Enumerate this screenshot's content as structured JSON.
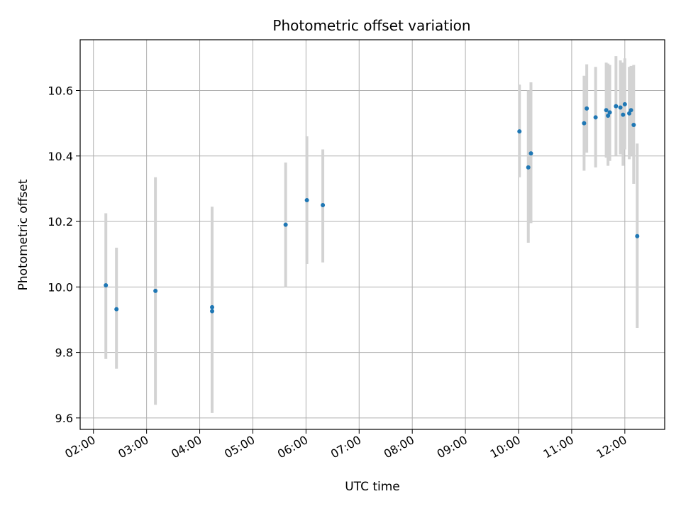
{
  "chart_data": {
    "type": "scatter",
    "title": "Photometric offset variation",
    "xlabel": "UTC time",
    "ylabel": "Photometric offset",
    "x_ticks": [
      "02:00",
      "03:00",
      "04:00",
      "05:00",
      "06:00",
      "07:00",
      "08:00",
      "09:00",
      "10:00",
      "11:00",
      "12:00"
    ],
    "y_ticks": [
      "9.6",
      "9.8",
      "10.0",
      "10.2",
      "10.4",
      "10.6"
    ],
    "xlim": [
      "01:45",
      "12:45"
    ],
    "ylim": [
      9.565,
      10.755
    ],
    "grid": true,
    "colors": {
      "points": "#1f77b4",
      "error_bars": "#d3d3d3",
      "grid": "#b0b0b0"
    },
    "points": [
      {
        "t": "02:14",
        "y": 10.005,
        "lo": 9.78,
        "hi": 10.225
      },
      {
        "t": "02:26",
        "y": 9.932,
        "lo": 9.75,
        "hi": 10.12
      },
      {
        "t": "03:10",
        "y": 9.988,
        "lo": 9.64,
        "hi": 10.335
      },
      {
        "t": "04:14",
        "y": 9.938,
        "lo": 9.63,
        "hi": 10.245
      },
      {
        "t": "04:14",
        "y": 9.926,
        "lo": 9.615,
        "hi": 10.24
      },
      {
        "t": "05:37",
        "y": 10.19,
        "lo": 10.0,
        "hi": 10.38
      },
      {
        "t": "06:01",
        "y": 10.265,
        "lo": 10.07,
        "hi": 10.46
      },
      {
        "t": "06:19",
        "y": 10.25,
        "lo": 10.075,
        "hi": 10.42
      },
      {
        "t": "10:01",
        "y": 10.475,
        "lo": 10.335,
        "hi": 10.618
      },
      {
        "t": "10:11",
        "y": 10.365,
        "lo": 10.135,
        "hi": 10.6
      },
      {
        "t": "10:14",
        "y": 10.408,
        "lo": 10.195,
        "hi": 10.625
      },
      {
        "t": "11:14",
        "y": 10.5,
        "lo": 10.355,
        "hi": 10.645
      },
      {
        "t": "11:17",
        "y": 10.545,
        "lo": 10.41,
        "hi": 10.68
      },
      {
        "t": "11:27",
        "y": 10.518,
        "lo": 10.365,
        "hi": 10.672
      },
      {
        "t": "11:39",
        "y": 10.54,
        "lo": 10.395,
        "hi": 10.685
      },
      {
        "t": "11:41",
        "y": 10.523,
        "lo": 10.37,
        "hi": 10.682
      },
      {
        "t": "11:43",
        "y": 10.533,
        "lo": 10.385,
        "hi": 10.678
      },
      {
        "t": "11:50",
        "y": 10.552,
        "lo": 10.4,
        "hi": 10.705
      },
      {
        "t": "11:55",
        "y": 10.548,
        "lo": 10.405,
        "hi": 10.692
      },
      {
        "t": "11:58",
        "y": 10.526,
        "lo": 10.37,
        "hi": 10.685
      },
      {
        "t": "12:00",
        "y": 10.558,
        "lo": 10.42,
        "hi": 10.698
      },
      {
        "t": "12:05",
        "y": 10.53,
        "lo": 10.39,
        "hi": 10.672
      },
      {
        "t": "12:07",
        "y": 10.54,
        "lo": 10.4,
        "hi": 10.675
      },
      {
        "t": "12:10",
        "y": 10.495,
        "lo": 10.315,
        "hi": 10.678
      },
      {
        "t": "12:14",
        "y": 10.155,
        "lo": 9.875,
        "hi": 10.438
      }
    ]
  }
}
